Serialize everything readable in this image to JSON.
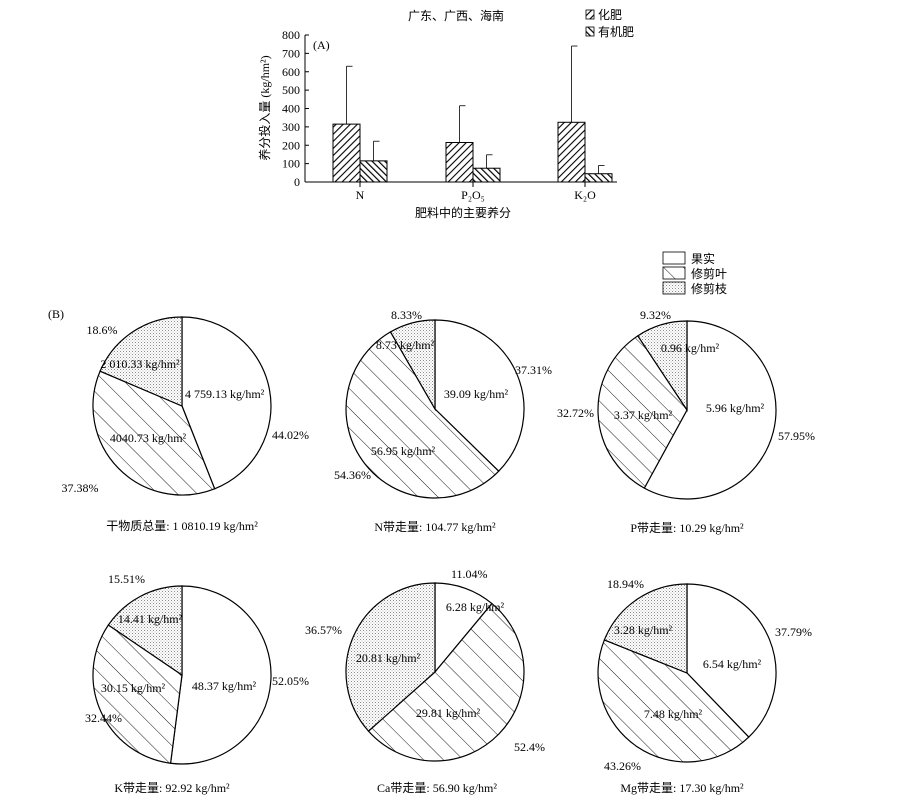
{
  "chart_data": [
    {
      "panel": "(A)",
      "type": "bar",
      "title": "广东、广西、海南",
      "xlabel": "肥料中的主要养分",
      "ylabel": "养分投入量 (kg/hm²)",
      "ylim": [
        0,
        800
      ],
      "yticks": [
        "0",
        "100",
        "200",
        "300",
        "400",
        "500",
        "600",
        "700",
        "800"
      ],
      "categories": [
        "N",
        "P₂O₅",
        "K₂O"
      ],
      "series": [
        {
          "name": "化肥",
          "values": [
            315,
            215,
            325
          ],
          "error_upper": [
            630,
            415,
            740
          ]
        },
        {
          "name": "有机肥",
          "values": [
            115,
            75,
            45
          ],
          "error_upper": [
            222,
            148,
            90
          ]
        }
      ],
      "legend_position": "top-right"
    },
    {
      "panel": "(B)",
      "type": "pie",
      "legend": [
        "果实",
        "修剪叶",
        "修剪枝"
      ],
      "pies": [
        {
          "caption": "干物质总量: 1 0810.19 kg/hm²",
          "slices": [
            {
              "name": "果实",
              "percent": 44.02,
              "percent_label": "44.02%",
              "amount": "4 759.13 kg/hm²"
            },
            {
              "name": "修剪叶",
              "percent": 37.38,
              "percent_label": "37.38%",
              "amount": "4040.73 kg/hm²"
            },
            {
              "name": "修剪枝",
              "percent": 18.6,
              "percent_label": "18.6%",
              "amount": "2 010.33 kg/hm²"
            }
          ]
        },
        {
          "caption": "N带走量: 104.77 kg/hm²",
          "slices": [
            {
              "name": "果实",
              "percent": 37.31,
              "percent_label": "37.31%",
              "amount": "39.09 kg/hm²"
            },
            {
              "name": "修剪叶",
              "percent": 54.36,
              "percent_label": "54.36%",
              "amount": "56.95 kg/hm²"
            },
            {
              "name": "修剪枝",
              "percent": 8.33,
              "percent_label": "8.33%",
              "amount": "8.73 kg/hm²"
            }
          ]
        },
        {
          "caption": "P带走量: 10.29 kg/hm²",
          "slices": [
            {
              "name": "果实",
              "percent": 57.95,
              "percent_label": "57.95%",
              "amount": "5.96 kg/hm²"
            },
            {
              "name": "修剪叶",
              "percent": 32.72,
              "percent_label": "32.72%",
              "amount": "3.37 kg/hm²"
            },
            {
              "name": "修剪枝",
              "percent": 9.32,
              "percent_label": "9.32%",
              "amount": "0.96 kg/hm²"
            }
          ]
        },
        {
          "caption": "K带走量: 92.92 kg/hm²",
          "slices": [
            {
              "name": "果实",
              "percent": 52.05,
              "percent_label": "52.05%",
              "amount": "48.37 kg/hm²"
            },
            {
              "name": "修剪叶",
              "percent": 32.44,
              "percent_label": "32.44%",
              "amount": "30.15 kg/hm²"
            },
            {
              "name": "修剪枝",
              "percent": 15.51,
              "percent_label": "15.51%",
              "amount": "14.41 kg/hm²"
            }
          ]
        },
        {
          "caption": "Ca带走量: 56.90 kg/hm²",
          "slices": [
            {
              "name": "果实",
              "percent": 11.04,
              "percent_label": "11.04%",
              "amount": "6.28 kg/hm²"
            },
            {
              "name": "修剪叶",
              "percent": 52.4,
              "percent_label": "52.4%",
              "amount": "29.81 kg/hm²"
            },
            {
              "name": "修剪枝",
              "percent": 36.57,
              "percent_label": "36.57%",
              "amount": "20.81 kg/hm²"
            }
          ]
        },
        {
          "caption": "Mg带走量: 17.30 kg/hm²",
          "slices": [
            {
              "name": "果实",
              "percent": 37.79,
              "percent_label": "37.79%",
              "amount": "6.54 kg/hm²"
            },
            {
              "name": "修剪叶",
              "percent": 43.26,
              "percent_label": "43.26%",
              "amount": "7.48 kg/hm²"
            },
            {
              "name": "修剪枝",
              "percent": 18.94,
              "percent_label": "18.94%",
              "amount": "3.28 kg/hm²"
            }
          ]
        }
      ]
    }
  ]
}
